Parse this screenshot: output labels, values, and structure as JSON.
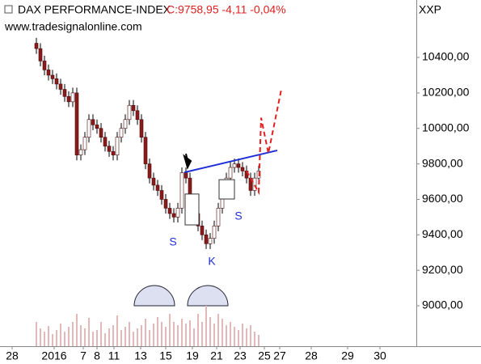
{
  "chart_data": {
    "type": "candlestick",
    "title": "DAX PERFORMANCE-INDEX",
    "subtitle": "C:9758,95 -4,11 -0,04%",
    "source": "www.tradesignalonline.com",
    "axis_label": "XXP",
    "xlim": [
      0,
      103
    ],
    "ylim": [
      8772,
      10724
    ],
    "yticks": [
      {
        "value": 9000,
        "label": "9000,00"
      },
      {
        "value": 9200,
        "label": "9200,00"
      },
      {
        "value": 9400,
        "label": "9400,00"
      },
      {
        "value": 9600,
        "label": "9600,00"
      },
      {
        "value": 9800,
        "label": "9800,00"
      },
      {
        "value": 10000,
        "label": "10000,00"
      },
      {
        "value": 10200,
        "label": "10200,00"
      },
      {
        "value": 10400,
        "label": "10400,00"
      }
    ],
    "xticks": [
      {
        "value": 3,
        "label": "28"
      },
      {
        "value": 13.4,
        "label": "2016"
      },
      {
        "value": 20.6,
        "label": "7"
      },
      {
        "value": 24,
        "label": "8"
      },
      {
        "value": 28.2,
        "label": "11"
      },
      {
        "value": 34.8,
        "label": "13"
      },
      {
        "value": 41,
        "label": "15"
      },
      {
        "value": 47.6,
        "label": "19"
      },
      {
        "value": 53.6,
        "label": "21"
      },
      {
        "value": 59.4,
        "label": "23"
      },
      {
        "value": 65.4,
        "label": "25"
      },
      {
        "value": 69.2,
        "label": "27"
      },
      {
        "value": 77,
        "label": "28"
      },
      {
        "value": 86,
        "label": "29"
      },
      {
        "value": 94,
        "label": "30"
      }
    ],
    "x": [
      9,
      10,
      11,
      12,
      13,
      14,
      15,
      16,
      17,
      18,
      19,
      20,
      21,
      22,
      23,
      24,
      25,
      26,
      27,
      28,
      29,
      30,
      31,
      32,
      33,
      34,
      35,
      36,
      37,
      38,
      39,
      40,
      41,
      42,
      43,
      44,
      45,
      46,
      47,
      48,
      49,
      50,
      51,
      52,
      53,
      54,
      55,
      56,
      57,
      58,
      59,
      60,
      61,
      62,
      63,
      64
    ],
    "open": [
      10480,
      10450,
      10380,
      10330,
      10300,
      10280,
      10250,
      10220,
      10180,
      10150,
      10200,
      9850,
      9880,
      9950,
      10050,
      10020,
      10000,
      9950,
      9900,
      9870,
      9850,
      9950,
      10000,
      10050,
      10130,
      10100,
      10050,
      9950,
      9800,
      9720,
      9680,
      9650,
      9600,
      9550,
      9520,
      9500,
      9550,
      9750,
      9720,
      9600,
      9520,
      9450,
      9400,
      9350,
      9380,
      9450,
      9550,
      9650,
      9720,
      9780,
      9800,
      9780,
      9760,
      9720,
      9650,
      9720
    ],
    "high": [
      10510,
      10480,
      10410,
      10360,
      10330,
      10310,
      10280,
      10250,
      10210,
      10230,
      10230,
      9910,
      9980,
      10080,
      10080,
      10050,
      10030,
      9980,
      9930,
      9900,
      9980,
      10030,
      10080,
      10160,
      10160,
      10130,
      10080,
      9980,
      9830,
      9750,
      9710,
      9680,
      9630,
      9580,
      9550,
      9580,
      9780,
      9780,
      9750,
      9630,
      9550,
      9480,
      9430,
      9410,
      9480,
      9580,
      9680,
      9750,
      9810,
      9830,
      9830,
      9810,
      9790,
      9750,
      9750,
      9790
    ],
    "low": [
      10420,
      10350,
      10300,
      10270,
      10250,
      10220,
      10190,
      10150,
      10120,
      10120,
      9820,
      9820,
      9850,
      9920,
      9990,
      9970,
      9920,
      9870,
      9840,
      9820,
      9820,
      9920,
      9970,
      10020,
      10070,
      10020,
      9920,
      9770,
      9690,
      9650,
      9620,
      9570,
      9520,
      9490,
      9470,
      9470,
      9520,
      9690,
      9570,
      9490,
      9420,
      9370,
      9320,
      9320,
      9350,
      9420,
      9520,
      9620,
      9690,
      9750,
      9750,
      9730,
      9690,
      9620,
      9620,
      9690
    ],
    "close": [
      10450,
      10380,
      10330,
      10300,
      10280,
      10250,
      10220,
      10180,
      10150,
      10200,
      9850,
      9880,
      9950,
      10050,
      10020,
      10000,
      9950,
      9900,
      9870,
      9850,
      9950,
      10000,
      10050,
      10130,
      10100,
      10050,
      9950,
      9800,
      9720,
      9680,
      9650,
      9600,
      9550,
      9520,
      9500,
      9550,
      9750,
      9720,
      9600,
      9520,
      9450,
      9400,
      9350,
      9380,
      9450,
      9550,
      9650,
      9720,
      9780,
      9800,
      9780,
      9760,
      9720,
      9650,
      9720,
      9760
    ],
    "volume": [
      30,
      22,
      18,
      25,
      15,
      20,
      28,
      18,
      24,
      30,
      40,
      26,
      22,
      35,
      18,
      20,
      30,
      16,
      22,
      26,
      38,
      20,
      24,
      30,
      18,
      22,
      26,
      34,
      20,
      28,
      36,
      30,
      24,
      40,
      30,
      26,
      34,
      28,
      32,
      22,
      40,
      30,
      50,
      36,
      28,
      40,
      34,
      26,
      30,
      24,
      20,
      28,
      22,
      26,
      18,
      14
    ],
    "trendline": {
      "color": "#1f2fd6",
      "x": [
        45.6,
        68.6
      ],
      "values": [
        9752,
        9876
      ]
    },
    "projection": {
      "color": "#e02020",
      "x": [
        61,
        64,
        64.6,
        66.4,
        69.6
      ],
      "values": [
        9760,
        9640,
        10060,
        9860,
        10220
      ]
    },
    "boxes": [
      {
        "x": [
          45.8,
          49.2
        ],
        "values": [
          9456,
          9630
        ]
      },
      {
        "x": [
          54.2,
          58
        ],
        "values": [
          9602,
          9711
        ]
      }
    ],
    "annotations": [
      "S",
      "K",
      "S"
    ]
  }
}
